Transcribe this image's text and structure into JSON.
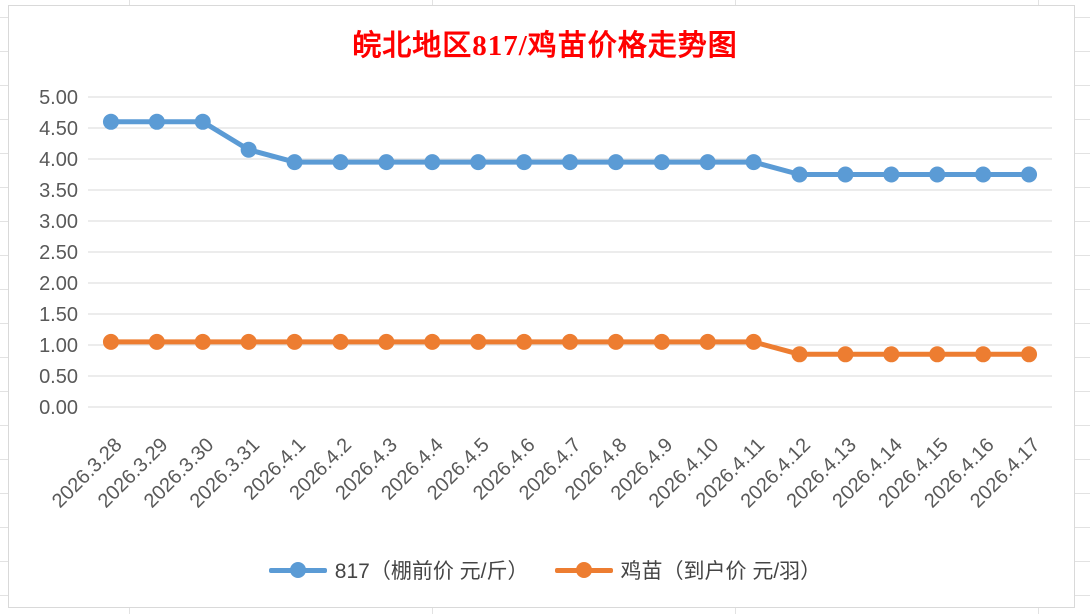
{
  "window": {
    "background": "#FFFFFF",
    "sheet_gridline_color": "#E2E2E2"
  },
  "chart_data": {
    "type": "line",
    "title": "皖北地区817/鸡苗价格走势图",
    "title_color": "#FF0000",
    "categories": [
      "2026.3.28",
      "2026.3.29",
      "2026.3.30",
      "2026.3.31",
      "2026.4.1",
      "2026.4.2",
      "2026.4.3",
      "2026.4.4",
      "2026.4.5",
      "2026.4.6",
      "2026.4.7",
      "2026.4.8",
      "2026.4.9",
      "2026.4.10",
      "2026.4.11",
      "2026.4.12",
      "2026.4.13",
      "2026.4.14",
      "2026.4.15",
      "2026.4.16",
      "2026.4.17"
    ],
    "series": [
      {
        "name": "817（棚前价 元/斤）",
        "color": "#5B9BD5",
        "values": [
          4.6,
          4.6,
          4.6,
          4.15,
          3.95,
          3.95,
          3.95,
          3.95,
          3.95,
          3.95,
          3.95,
          3.95,
          3.95,
          3.95,
          3.95,
          3.75,
          3.75,
          3.75,
          3.75,
          3.75,
          3.75
        ]
      },
      {
        "name": "鸡苗（到户价 元/羽）",
        "color": "#ED7D31",
        "values": [
          1.05,
          1.05,
          1.05,
          1.05,
          1.05,
          1.05,
          1.05,
          1.05,
          1.05,
          1.05,
          1.05,
          1.05,
          1.05,
          1.05,
          1.05,
          0.85,
          0.85,
          0.85,
          0.85,
          0.85,
          0.85
        ]
      }
    ],
    "ylim": [
      0,
      5
    ],
    "yticks": [
      "0.00",
      "0.50",
      "1.00",
      "1.50",
      "2.00",
      "2.50",
      "3.00",
      "3.50",
      "4.00",
      "4.50",
      "5.00"
    ],
    "ytick_step": 0.5,
    "xlabel": "",
    "ylabel": "",
    "grid": true,
    "gridline_color": "#D9D9D9",
    "axis_label_color": "#595959",
    "x_label_rotation": -45,
    "legend_position": "bottom",
    "marker": "circle",
    "line_width": 5,
    "marker_radius": 8
  }
}
